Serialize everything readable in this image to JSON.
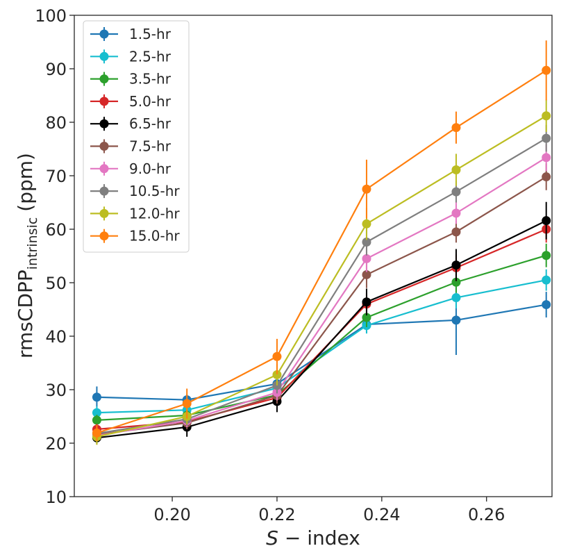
{
  "chart_data": {
    "type": "line",
    "ylabel": [
      "rmsCDPP",
      "intrinsic",
      "(ppm)"
    ],
    "xlabel": [
      "S",
      "− index"
    ],
    "x": [
      0.1856,
      0.2028,
      0.22,
      0.2371,
      0.2542,
      0.2714
    ],
    "series": [
      {
        "name": "1.5-hr",
        "color": "#1f77b4",
        "values": [
          28.6,
          28.1,
          31.1,
          42.2,
          43.0,
          45.9
        ],
        "errors": [
          2.0,
          1.0,
          1.2,
          1.5,
          6.5,
          2.4
        ]
      },
      {
        "name": "2.5-hr",
        "color": "#17becf",
        "values": [
          25.7,
          26.2,
          30.3,
          42.0,
          47.2,
          50.5
        ],
        "errors": [
          1.2,
          1.0,
          1.2,
          1.5,
          2.0,
          2.0
        ]
      },
      {
        "name": "3.5-hr",
        "color": "#2ca02c",
        "values": [
          24.3,
          25.2,
          29.0,
          43.5,
          50.1,
          55.1
        ],
        "errors": [
          1.0,
          1.0,
          1.2,
          1.8,
          2.0,
          2.2
        ]
      },
      {
        "name": "5.0-hr",
        "color": "#d62728",
        "values": [
          22.6,
          24.0,
          28.5,
          46.0,
          52.8,
          60.0
        ],
        "errors": [
          1.0,
          1.0,
          1.2,
          2.0,
          2.5,
          2.5
        ]
      },
      {
        "name": "6.5-hr",
        "color": "#000000",
        "values": [
          21.0,
          23.0,
          27.8,
          46.4,
          53.3,
          61.6
        ],
        "errors": [
          1.2,
          1.8,
          2.0,
          2.5,
          3.0,
          3.5
        ]
      },
      {
        "name": "7.5-hr",
        "color": "#8c564b",
        "values": [
          21.6,
          23.8,
          28.9,
          51.5,
          59.5,
          69.8
        ],
        "errors": [
          1.0,
          1.2,
          1.5,
          2.5,
          2.0,
          2.5
        ]
      },
      {
        "name": "9.0-hr",
        "color": "#e377c2",
        "values": [
          21.4,
          24.2,
          29.5,
          54.5,
          63.0,
          73.4
        ],
        "errors": [
          1.0,
          1.2,
          1.5,
          2.5,
          2.0,
          2.5
        ]
      },
      {
        "name": "10.5-hr",
        "color": "#7f7f7f",
        "values": [
          21.8,
          24.5,
          30.8,
          57.6,
          67.0,
          77.0
        ],
        "errors": [
          1.0,
          1.2,
          1.5,
          2.5,
          2.0,
          2.5
        ]
      },
      {
        "name": "12.0-hr",
        "color": "#bcbd22",
        "values": [
          21.2,
          25.0,
          32.8,
          61.0,
          71.1,
          81.2
        ],
        "errors": [
          1.5,
          1.5,
          2.0,
          3.0,
          3.0,
          3.0
        ]
      },
      {
        "name": "15.0-hr",
        "color": "#ff7f0e",
        "values": [
          21.9,
          27.4,
          36.2,
          67.5,
          79.0,
          89.7
        ],
        "errors": [
          1.5,
          2.8,
          3.3,
          5.5,
          3.0,
          5.6
        ]
      }
    ],
    "xlim": [
      0.1813,
      0.2725
    ],
    "ylim": [
      10,
      100
    ],
    "xticks": [
      {
        "value": 0.2,
        "label": "0.20"
      },
      {
        "value": 0.22,
        "label": "0.22"
      },
      {
        "value": 0.24,
        "label": "0.24"
      },
      {
        "value": 0.26,
        "label": "0.26"
      }
    ],
    "yticks": [
      10,
      20,
      30,
      40,
      50,
      60,
      70,
      80,
      90,
      100
    ],
    "legend": "upper left",
    "grid": false
  }
}
